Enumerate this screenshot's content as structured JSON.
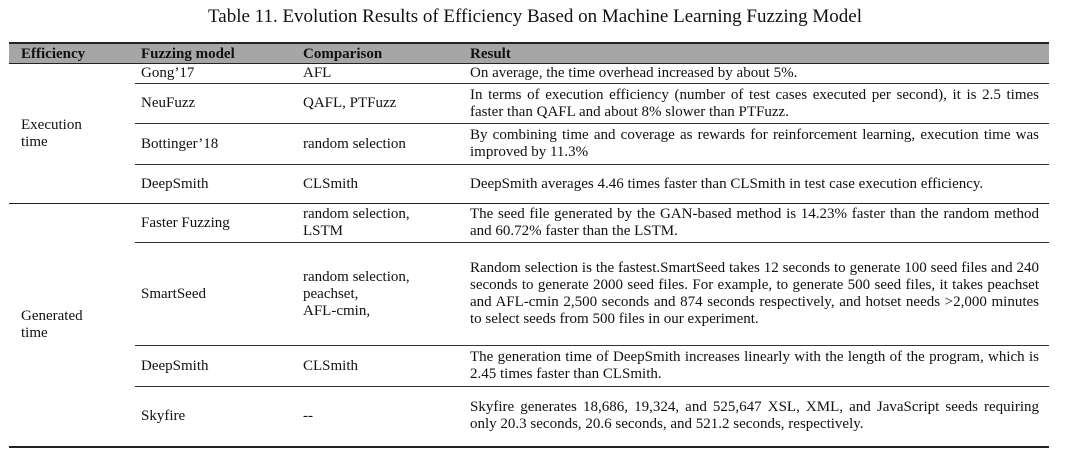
{
  "caption": "Table 11. Evolution Results of Efficiency Based on Machine Learning Fuzzing Model",
  "headers": [
    "Efficiency",
    "Fuzzing model",
    "Comparison",
    "Result"
  ],
  "groups": [
    {
      "label_lines": [
        "Execution",
        "time"
      ],
      "rows": [
        {
          "model": "Gong’17",
          "comparison_lines": [
            "AFL"
          ],
          "result": "On average, the time overhead increased by about 5%."
        },
        {
          "model": "NeuFuzz",
          "comparison_lines": [
            "QAFL, PTFuzz"
          ],
          "result": "In terms of execution efficiency (number of test cases executed per second), it is 2.5 times faster than QAFL and about 8% slower than PTFuzz."
        },
        {
          "model": "Bottinger’18",
          "comparison_lines": [
            "random selection"
          ],
          "result": "By combining time and coverage as rewards for reinforcement learning, execution time was improved by 11.3%"
        },
        {
          "model": "DeepSmith",
          "comparison_lines": [
            "CLSmith"
          ],
          "result": "DeepSmith averages 4.46 times faster than CLSmith in test case execution efficiency."
        }
      ]
    },
    {
      "label_lines": [
        "Generated",
        "time"
      ],
      "rows": [
        {
          "model": "Faster Fuzzing",
          "comparison_lines": [
            "random selection,",
            "LSTM"
          ],
          "result": "The seed file generated by the GAN-based method is 14.23% faster than the random method and 60.72% faster than the LSTM."
        },
        {
          "model": "SmartSeed",
          "comparison_lines": [
            "random selection,",
            "peachset,",
            "AFL-cmin,"
          ],
          "result": "Random selection is the fastest.SmartSeed takes 12 seconds to generate 100 seed files and 240 seconds to generate 2000 seed files. For example, to generate 500 seed files, it takes peachset and AFL-cmin 2,500 seconds and 874 seconds respectively, and hotset needs >2,000 minutes to select seeds from 500 files in our experiment."
        },
        {
          "model": "DeepSmith",
          "comparison_lines": [
            "CLSmith"
          ],
          "result": "The generation time of DeepSmith increases linearly with the length of the program, which is 2.45 times faster than CLSmith."
        },
        {
          "model": "Skyfire",
          "comparison_lines": [
            "--"
          ],
          "result": "Skyfire generates 18,686, 19,324, and 525,647 XSL, XML, and JavaScript seeds requiring only 20.3 seconds, 20.6 seconds, and 521.2 seconds, respectively."
        }
      ]
    }
  ]
}
